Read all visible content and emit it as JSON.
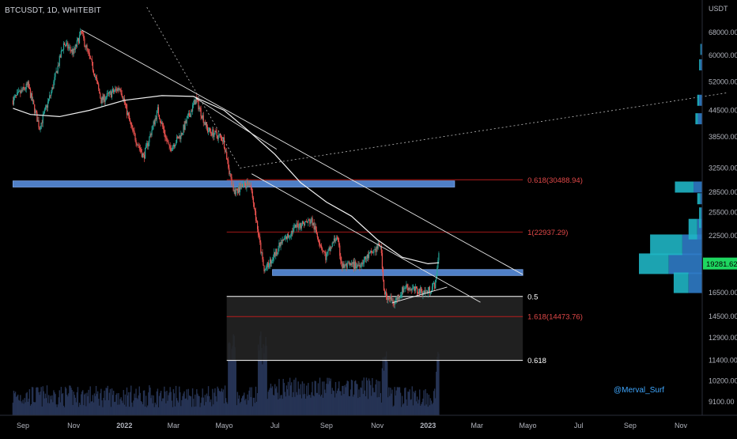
{
  "header": {
    "symbol_title": "BTCUSDT, 1D, WHITEBIT"
  },
  "watermark": {
    "author": "@Merval_Surf"
  },
  "colors": {
    "background": "#000000",
    "up": "#26a69a",
    "down": "#ef5350",
    "trendline": "#e8e8e8",
    "fib_line": "#b71c1c",
    "support_zone": "#4f7fc6",
    "shade_zone": "#262626",
    "volume": "#2a3a5e",
    "volume_profile_up": "#1fb5c4",
    "volume_profile_down": "#2f7bc7",
    "last_price_bg": "#1ed760",
    "author_color": "#3fa7ff",
    "axis_text": "#b2b5be"
  },
  "chart_data": {
    "type": "candlestick",
    "symbol": "BTCUSDT",
    "interval": "1D",
    "exchange": "WHITEBIT",
    "y_axis_unit": "USDT",
    "y_scale": "log",
    "ylim": [
      8500,
      80000
    ],
    "x_range": [
      "2021-08-20",
      "2023-12-31"
    ],
    "x_ticks": [
      {
        "label": "Sep",
        "date": "2021-09-01"
      },
      {
        "label": "Nov",
        "date": "2021-11-01"
      },
      {
        "label": "2022",
        "date": "2022-01-01"
      },
      {
        "label": "Mar",
        "date": "2022-03-01"
      },
      {
        "label": "Mayo",
        "date": "2022-05-01"
      },
      {
        "label": "Jul",
        "date": "2022-07-01"
      },
      {
        "label": "Sep",
        "date": "2022-09-01"
      },
      {
        "label": "Nov",
        "date": "2022-11-01"
      },
      {
        "label": "2023",
        "date": "2023-01-01"
      },
      {
        "label": "Mar",
        "date": "2023-03-01"
      },
      {
        "label": "Mayo",
        "date": "2023-05-01"
      },
      {
        "label": "Jul",
        "date": "2023-07-01"
      },
      {
        "label": "Sep",
        "date": "2023-09-01"
      },
      {
        "label": "Nov",
        "date": "2023-11-01"
      }
    ],
    "y_ticks": [
      "68000.00",
      "60000.00",
      "52000.00",
      "44500.00",
      "38500.00",
      "32500.00",
      "28500.00",
      "25500.00",
      "22500.00",
      "16500.00",
      "14500.00",
      "12900.00",
      "11400.00",
      "10200.00",
      "9100.00"
    ],
    "last_price": "19281.62",
    "price_path": [
      [
        "2021-08-20",
        47000
      ],
      [
        "2021-09-07",
        51000
      ],
      [
        "2021-09-21",
        40500
      ],
      [
        "2021-10-05",
        49000
      ],
      [
        "2021-10-20",
        64000
      ],
      [
        "2021-11-01",
        61000
      ],
      [
        "2021-11-10",
        68000
      ],
      [
        "2021-11-26",
        54500
      ],
      [
        "2021-12-04",
        47000
      ],
      [
        "2021-12-27",
        50500
      ],
      [
        "2022-01-10",
        40000
      ],
      [
        "2022-01-24",
        34500
      ],
      [
        "2022-02-10",
        44500
      ],
      [
        "2022-02-24",
        36000
      ],
      [
        "2022-03-10",
        39000
      ],
      [
        "2022-03-28",
        47300
      ],
      [
        "2022-04-11",
        40000
      ],
      [
        "2022-04-30",
        38000
      ],
      [
        "2022-05-12",
        28500
      ],
      [
        "2022-06-01",
        30200
      ],
      [
        "2022-06-18",
        18500
      ],
      [
        "2022-07-08",
        21500
      ],
      [
        "2022-07-28",
        23800
      ],
      [
        "2022-08-14",
        24400
      ],
      [
        "2022-08-31",
        20000
      ],
      [
        "2022-09-13",
        22400
      ],
      [
        "2022-09-20",
        19000
      ],
      [
        "2022-10-10",
        19200
      ],
      [
        "2022-10-28",
        20700
      ],
      [
        "2022-11-05",
        21400
      ],
      [
        "2022-11-09",
        16500
      ],
      [
        "2022-11-21",
        15600
      ],
      [
        "2022-12-05",
        17100
      ],
      [
        "2022-12-16",
        16700
      ],
      [
        "2022-12-31",
        16550
      ],
      [
        "2023-01-10",
        17300
      ],
      [
        "2023-01-13",
        19300
      ],
      [
        "2023-01-14",
        20800
      ]
    ],
    "moving_average": [
      [
        "2021-08-20",
        45000
      ],
      [
        "2021-09-10",
        43500
      ],
      [
        "2021-10-15",
        43000
      ],
      [
        "2021-11-20",
        44500
      ],
      [
        "2022-01-01",
        47000
      ],
      [
        "2022-02-15",
        48200
      ],
      [
        "2022-03-25",
        48000
      ],
      [
        "2022-05-01",
        44500
      ],
      [
        "2022-06-01",
        39500
      ],
      [
        "2022-07-01",
        35000
      ],
      [
        "2022-08-01",
        30000
      ],
      [
        "2022-09-01",
        27000
      ],
      [
        "2022-10-01",
        25000
      ],
      [
        "2022-11-01",
        22000
      ],
      [
        "2022-12-01",
        20000
      ],
      [
        "2023-01-01",
        19300
      ],
      [
        "2023-01-14",
        19400
      ]
    ],
    "trendlines": [
      {
        "from": [
          "2021-11-10",
          69000
        ],
        "to": [
          "2023-04-25",
          18200
        ]
      },
      {
        "from": [
          "2022-06-03",
          31500
        ],
        "to": [
          "2023-03-05",
          15650
        ]
      },
      {
        "from": [
          "2022-03-28",
          47500
        ],
        "to": [
          "2022-07-03",
          36000
        ]
      },
      {
        "from": [
          "2022-11-19",
          15600
        ],
        "to": [
          "2023-01-24",
          17000
        ]
      }
    ],
    "dotted_lines": [
      {
        "from": [
          "2022-01-28",
          78000
        ],
        "to": [
          "2022-05-20",
          32500
        ]
      },
      {
        "from": [
          "2022-05-20",
          32500
        ],
        "to": [
          "2023-12-28",
          49000
        ]
      }
    ],
    "horizontal_zones": [
      {
        "kind": "support",
        "from": "2021-08-20",
        "to": "2023-02-02",
        "low": 29300,
        "high": 30300
      },
      {
        "kind": "support",
        "from": "2022-06-28",
        "to": "2023-04-25",
        "low": 18100,
        "high": 18700
      }
    ],
    "shaded_box": {
      "from": "2022-05-04",
      "to": "2023-04-25",
      "low": 11400,
      "high": 16150
    },
    "levels": [
      {
        "label": "0.618(30488.94)",
        "value": 30488.94,
        "style": "fib"
      },
      {
        "label": "1(22937.29)",
        "value": 22937.29,
        "style": "fib"
      },
      {
        "label": "1.618(14473.76)",
        "value": 14473.76,
        "style": "fib"
      },
      {
        "label": "0.5",
        "value": 16150,
        "style": "white"
      },
      {
        "label": "0.618",
        "value": 11400,
        "style": "white"
      }
    ],
    "volume_profile": [
      {
        "price": 19300,
        "up": 48,
        "down": 54
      },
      {
        "price": 21400,
        "up": 52,
        "down": 32
      },
      {
        "price": 17400,
        "up": 24,
        "down": 22
      },
      {
        "price": 29300,
        "up": 30,
        "down": 14
      },
      {
        "price": 23300,
        "up": 14,
        "down": 8
      },
      {
        "price": 24800,
        "up": 3,
        "down": 2
      },
      {
        "price": 27500,
        "up": 5,
        "down": 3
      },
      {
        "price": 42500,
        "up": 4,
        "down": 7
      },
      {
        "price": 47000,
        "up": 3,
        "down": 5
      },
      {
        "price": 57000,
        "up": 2,
        "down": 3
      },
      {
        "price": 62000,
        "up": 1,
        "down": 2
      }
    ]
  }
}
